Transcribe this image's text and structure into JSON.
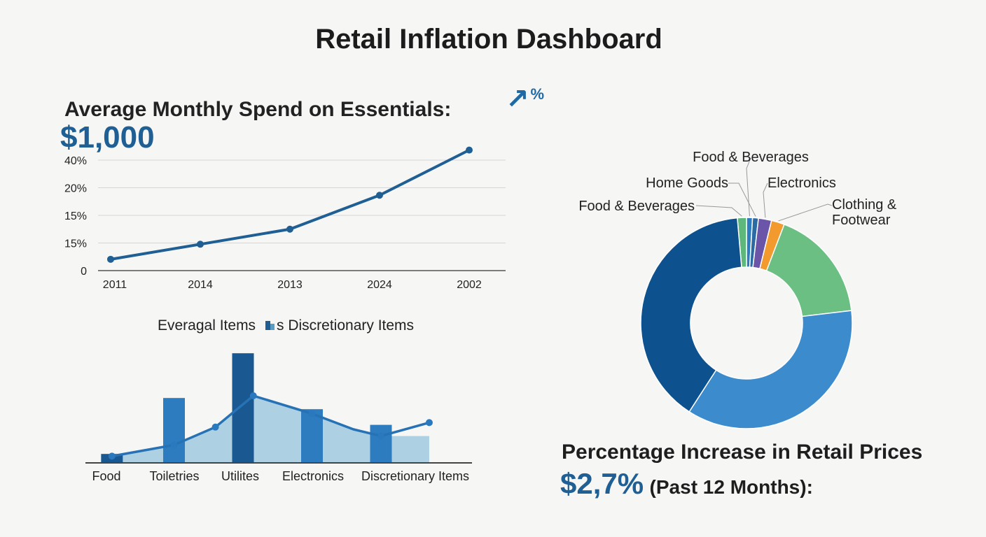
{
  "title": "Retail Inflation Dashboard",
  "spend": {
    "label": "Average Monthly Spend on Essentials:",
    "value": "$1,000"
  },
  "top_indicator": {
    "arrow": "↗",
    "value": "%"
  },
  "chart_data": [
    {
      "type": "line",
      "x": [
        "2011",
        "2014",
        "2013",
        "2024",
        "2002"
      ],
      "y_tick_labels": [
        "0",
        "15%",
        "15%",
        "20%",
        "40%"
      ],
      "values": [
        0.45,
        1.05,
        1.65,
        3.0,
        4.8
      ],
      "ylim": [
        0,
        4.4
      ],
      "grid": true,
      "color": "#1f5f94"
    },
    {
      "type": "bar",
      "legend": [
        {
          "label": "Everagal Items",
          "color": "#1f5f94"
        },
        {
          "label": "s Discretionary Items",
          "color": "#5b9cc4"
        }
      ],
      "categories": [
        "Food",
        "Toiletries",
        "Utilites",
        "Electronics",
        "Discretionary Items"
      ],
      "bars": [
        {
          "x": 0.1,
          "value": 4,
          "color": "#1a5891"
        },
        {
          "x": 1,
          "value": 29,
          "color": "#2d7cc0"
        },
        {
          "x": 2,
          "value": 49,
          "color": "#1a5891"
        },
        {
          "x": 3,
          "value": 24,
          "color": "#2d7cc0"
        },
        {
          "x": 4,
          "value": 17,
          "color": "#2d7cc0"
        }
      ],
      "line": {
        "x": [
          0.1,
          1.0,
          1.6,
          2.15,
          3.0,
          3.6,
          4.0,
          4.7
        ],
        "values": [
          3,
          8,
          16,
          30,
          22,
          15,
          12,
          18
        ]
      },
      "area": {
        "x": [
          0.1,
          1.0,
          1.6,
          2.15,
          3.0,
          3.6,
          4.0,
          4.7
        ],
        "values": [
          3,
          8,
          16,
          30,
          22,
          15,
          12,
          12
        ]
      },
      "ylim": [
        0,
        50
      ]
    },
    {
      "type": "pie",
      "slices": [
        {
          "label": "Food & Beverages",
          "value": 1.4,
          "color": "#5eb87c",
          "labelled": true
        },
        {
          "label": "Food & Beverages",
          "value": 0.9,
          "color": "#2d7cc0",
          "labelled": true
        },
        {
          "label": "Home Goods",
          "value": 0.9,
          "color": "#2b6aa2",
          "labelled": true
        },
        {
          "label": "Electronics",
          "value": 2.0,
          "color": "#6b55a8",
          "labelled": true
        },
        {
          "label": "Clothing & Footwear",
          "value": 2.0,
          "color": "#f29a2e",
          "labelled": true
        },
        {
          "label": "",
          "value": 17.3,
          "color": "#6bbf82",
          "labelled": false
        },
        {
          "label": "",
          "value": 36.0,
          "color": "#3c8bcd",
          "labelled": false
        },
        {
          "label": "",
          "value": 39.5,
          "color": "#0d528f",
          "labelled": false
        }
      ]
    }
  ],
  "pct_increase": {
    "title": "Percentage Increase in Retail Prices",
    "value": "$2,7%",
    "note": "(Past 12 Months):"
  }
}
